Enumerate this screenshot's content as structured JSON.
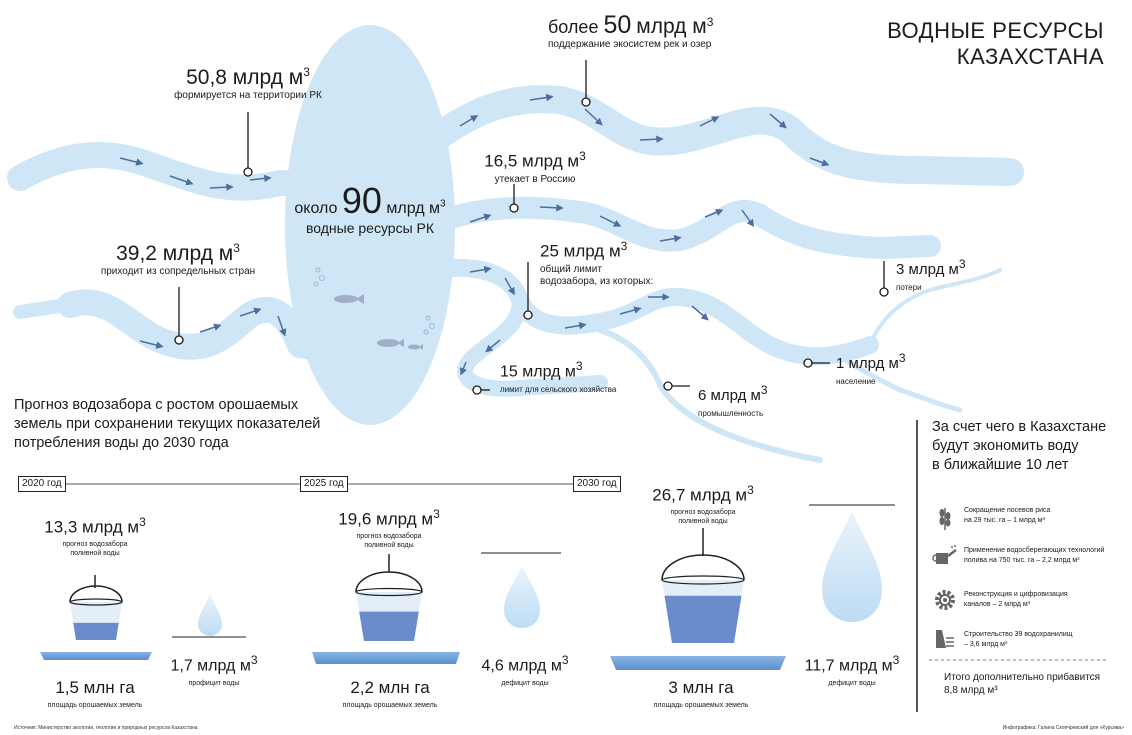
{
  "title_line1": "ВОДНЫЕ РЕСУРСЫ",
  "title_line2": "КАЗАХСТАНА",
  "colors": {
    "water": "#cfe6f6",
    "water_dark": "#5a7fc0",
    "arrow": "#4d6e9e",
    "text": "#1b1b1b"
  },
  "center": {
    "prefix": "около",
    "value": "90",
    "unit": "млрд м",
    "sup": "3",
    "label": "водные ресурсы РК"
  },
  "flows": {
    "formed": {
      "value": "50,8 млрд м",
      "sup": "3",
      "label": "формируется на территории РК"
    },
    "incoming": {
      "value": "39,2 млрд м",
      "sup": "3",
      "label": "приходит из сопредельных стран"
    },
    "ecosystem": {
      "prefix": "более",
      "num": "50",
      "value": "млрд м",
      "sup": "3",
      "label": "поддержание экосистем рек и озер"
    },
    "russia": {
      "value": "16,5 млрд м",
      "sup": "3",
      "label": "утекает в Россию"
    },
    "limit": {
      "value": "25 млрд м",
      "sup": "3",
      "label1": "общий лимит",
      "label2": "водозабора, из которых:"
    },
    "agri": {
      "value": "15 млрд м",
      "sup": "3",
      "label": "лимит для сельского хозяйства"
    },
    "industry": {
      "value": "6 млрд м",
      "sup": "3",
      "label": "промышленность"
    },
    "population": {
      "value": "1 млрд м",
      "sup": "3",
      "label": "население"
    },
    "losses": {
      "value": "3 млрд м",
      "sup": "3",
      "label": "потери"
    }
  },
  "forecast": {
    "heading1": "Прогноз водозабора с ростом орошаемых",
    "heading2": "земель при сохранении текущих показателей",
    "heading3": "потребления воды до 2030 года",
    "years": [
      "2020 год",
      "2025 год",
      "2030 год"
    ],
    "columns": [
      {
        "value": "13,3 млрд м",
        "sup": "3",
        "label1": "прогноз водозабора",
        "label2": "поливной воды",
        "area": "1,5 млн га",
        "area_label": "площадь орошаемых земель",
        "balance": "1,7 млрд м",
        "balance_sup": "3",
        "balance_label": "профицит воды",
        "fill": 0.45
      },
      {
        "value": "19,6 млрд м",
        "sup": "3",
        "label1": "прогноз водозабора",
        "label2": "поливной воды",
        "area": "2,2 млн га",
        "area_label": "площадь орошаемых земель",
        "balance": "4,6 млрд м",
        "balance_sup": "3",
        "balance_label": "дефицит воды",
        "fill": 0.6
      },
      {
        "value": "26,7 млрд м",
        "sup": "3",
        "label1": "прогноз водозабора",
        "label2": "поливной воды",
        "area": "3 млн га",
        "area_label": "площадь орошаемых земель",
        "balance": "11,7 млрд м",
        "balance_sup": "3",
        "balance_label": "дефицит воды",
        "fill": 0.75
      }
    ]
  },
  "savings": {
    "heading1": "За счет чего в Казахстане",
    "heading2": "будут экономить воду",
    "heading3": "в ближайшие 10 лет",
    "items": [
      {
        "icon": "rice-icon",
        "line1": "Сокращение посевов риса",
        "line2": "на 29 тыс. га – 1 млрд м³"
      },
      {
        "icon": "watering-can-icon",
        "line1": "Применение водосберегающих технологий",
        "line2": "полива на 750 тыс. га – 2,2 млрд м³"
      },
      {
        "icon": "gear-icon",
        "line1": "Реконструкция и цифровизация",
        "line2": "каналов – 2 млрд м³"
      },
      {
        "icon": "dam-icon",
        "line1": "Строительство 39 водохранилищ",
        "line2": "– 3,6 млрд м³"
      }
    ],
    "total1": "Итого дополнительно прибавится",
    "total2": "8,8 млрд м³"
  },
  "footer": {
    "source": "Источник: Министерство экологии, геологии и природных ресурсов Казахстана",
    "credit": "Инфографика: Галина Скопчревский для «Курсива»"
  }
}
